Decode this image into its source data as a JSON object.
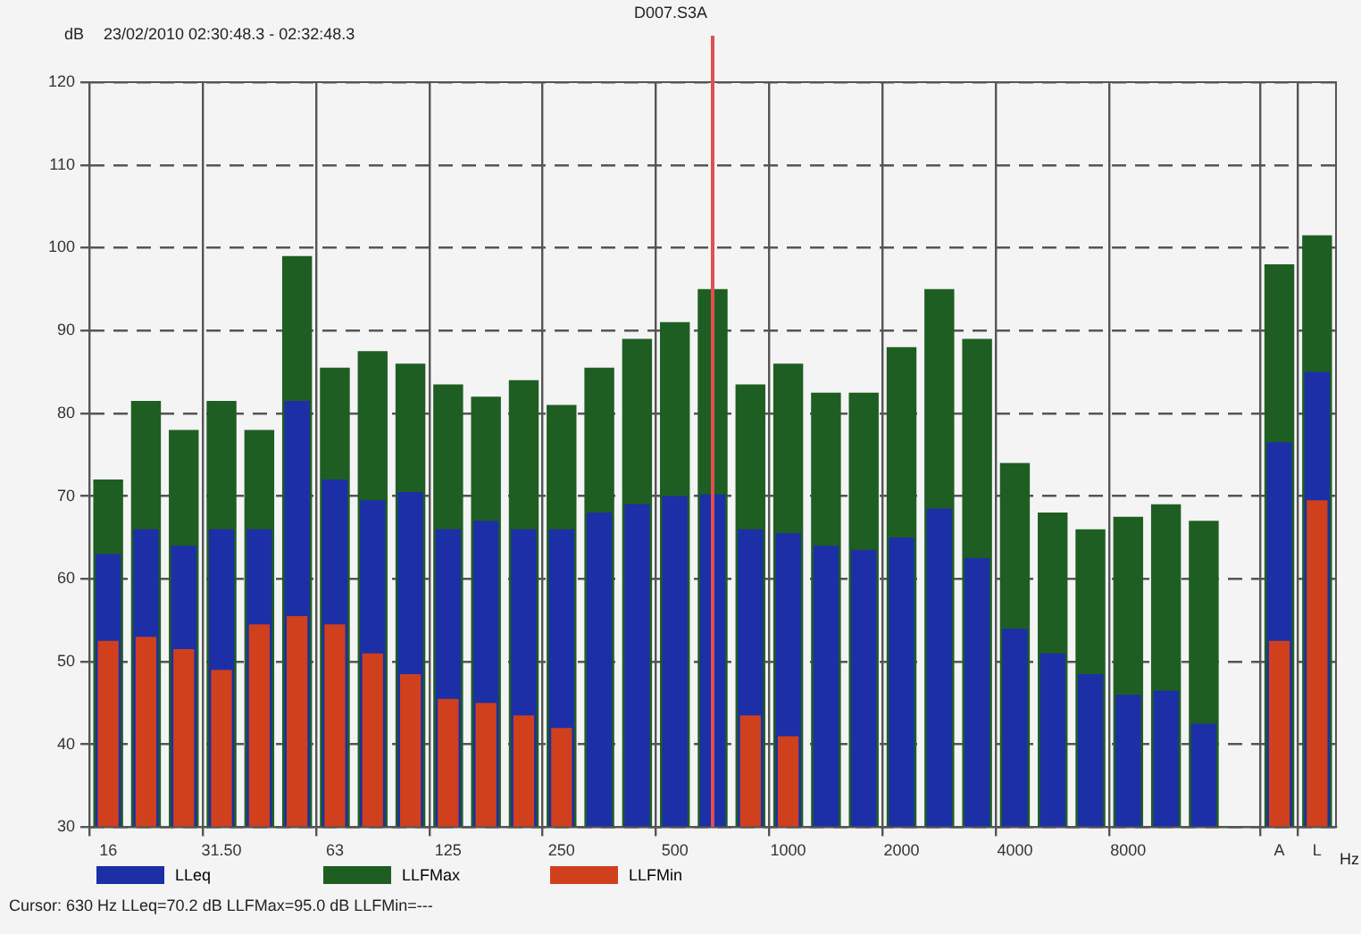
{
  "chart_data": {
    "type": "bar",
    "title": "D007.S3A",
    "subtitle": "23/02/2010 02:30:48.3 - 02:32:48.3",
    "ylabel": "dB",
    "xlabel": "Hz",
    "categories": [
      "16",
      null,
      null,
      "31.50",
      null,
      null,
      "63",
      null,
      null,
      "125",
      null,
      null,
      "250",
      null,
      null,
      "500",
      null,
      null,
      "1000",
      null,
      null,
      "2000",
      null,
      null,
      "4000",
      null,
      null,
      "8000",
      null,
      null,
      null,
      "A",
      "L"
    ],
    "series": [
      {
        "name": "LLeq",
        "color": "#1c2fa6",
        "values": [
          63,
          66,
          64,
          66,
          66,
          81.5,
          72,
          69.5,
          70.5,
          66,
          67,
          66,
          66,
          68,
          69,
          70,
          70.2,
          66,
          65.5,
          64,
          63.5,
          65,
          68.5,
          62.5,
          54,
          51,
          48.5,
          46,
          46.5,
          42.5,
          null,
          76.5,
          85
        ]
      },
      {
        "name": "LLFMax",
        "color": "#1f5e23",
        "values": [
          72,
          81.5,
          78,
          81.5,
          78,
          99,
          85.5,
          87.5,
          86,
          83.5,
          82,
          84,
          81,
          85.5,
          89,
          91,
          95,
          83.5,
          86,
          82.5,
          82.5,
          88,
          95,
          89,
          74,
          68,
          66,
          67.5,
          69,
          67,
          null,
          98,
          101.5
        ]
      },
      {
        "name": "LLFMin",
        "color": "#d0401c",
        "values": [
          52.5,
          53,
          51.5,
          49,
          54.5,
          55.5,
          54.5,
          51,
          48.5,
          45.5,
          45,
          43.5,
          42,
          null,
          null,
          null,
          null,
          43.5,
          41,
          null,
          null,
          null,
          null,
          null,
          null,
          null,
          null,
          null,
          null,
          null,
          null,
          52.5,
          69.5
        ]
      }
    ],
    "ylim": [
      30,
      120
    ],
    "yticks": [
      30,
      40,
      50,
      60,
      70,
      80,
      90,
      100,
      110,
      120
    ],
    "grid": true,
    "legend": "bottom",
    "line_style": "dashed",
    "annotations": [
      "Cursor: 630 Hz  LLeq=70.2 dB  LLFMax=95.0 dB  LLFMin=---"
    ]
  }
}
